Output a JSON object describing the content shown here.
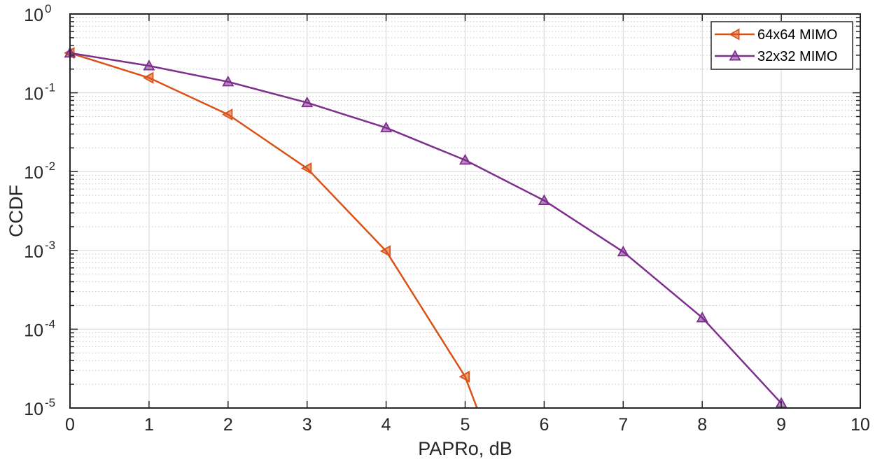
{
  "chart_data": {
    "type": "line",
    "title": "",
    "xlabel": "PAPRo, dB",
    "ylabel": "CCDF",
    "xlim": [
      0,
      10
    ],
    "ylim": [
      1e-05,
      1
    ],
    "yscale": "log",
    "grid": true,
    "minor_grid": true,
    "legend_position": "upper right",
    "x_ticks": [
      "0",
      "1",
      "2",
      "3",
      "4",
      "5",
      "6",
      "7",
      "8",
      "9",
      "10"
    ],
    "y_ticks": [
      {
        "base": "10",
        "exp": "0"
      },
      {
        "base": "10",
        "exp": "-1"
      },
      {
        "base": "10",
        "exp": "-2"
      },
      {
        "base": "10",
        "exp": "-3"
      },
      {
        "base": "10",
        "exp": "-4"
      },
      {
        "base": "10",
        "exp": "-5"
      }
    ],
    "series": [
      {
        "name": "64x64 MIMO",
        "color": "#D95319",
        "marker": "left-triangle",
        "x": [
          0,
          1,
          2,
          3,
          4,
          5
        ],
        "values": [
          0.32,
          0.155,
          0.053,
          0.011,
          0.00098,
          2.5e-05
        ],
        "line_extends_to": {
          "x": 5.15,
          "y": 1e-05
        }
      },
      {
        "name": "32x32 MIMO",
        "color": "#7E2F8E",
        "marker": "up-triangle",
        "x": [
          0,
          1,
          2,
          3,
          4,
          5,
          6,
          7,
          8,
          9
        ],
        "values": [
          0.32,
          0.22,
          0.138,
          0.075,
          0.036,
          0.014,
          0.0043,
          0.00096,
          0.00014,
          1.15e-05
        ]
      }
    ]
  }
}
